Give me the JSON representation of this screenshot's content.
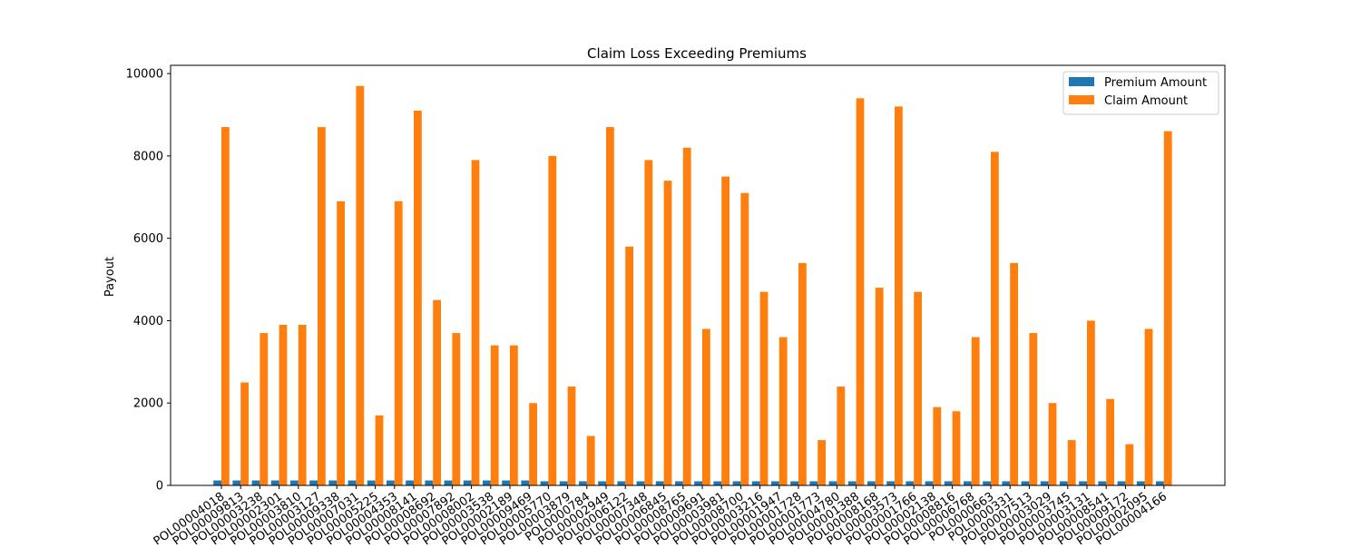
{
  "chart_data": {
    "type": "bar",
    "title": "Claim Loss Exceeding Premiums",
    "xlabel": "",
    "ylabel": "Payout",
    "ylim": [
      0,
      10200
    ],
    "yticks": [
      0,
      2000,
      4000,
      6000,
      8000,
      10000
    ],
    "grid": false,
    "legend_position": "top-right",
    "categories": [
      "POL00004018",
      "POL00009813",
      "POL00003238",
      "POL00002301",
      "POL00003810",
      "POL00003127",
      "POL00009338",
      "POL00007031",
      "POL00005225",
      "POL00004353",
      "POL00008141",
      "POL00008692",
      "POL00007892",
      "POL00008002",
      "POL00003538",
      "POL00002189",
      "POL00009469",
      "POL00005770",
      "POL00003879",
      "POL0000784",
      "POL00002949",
      "POL00006122",
      "POL00007348",
      "POL00006845",
      "POL00008765",
      "POL00009691",
      "POL00003981",
      "POL00008700",
      "POL00003216",
      "POL00001947",
      "POL00001728",
      "POL00001773",
      "POL00004780",
      "POL00001388",
      "POL00008168",
      "POL00003573",
      "POL00001766",
      "POL00002138",
      "POL00008816",
      "POL00006768",
      "POL0000663",
      "POL0000331",
      "POL00007513",
      "POL00003029",
      "POL00003745",
      "POL00003131",
      "POL00008541",
      "POL00009172",
      "POL00002095",
      "POL00004166"
    ],
    "series": [
      {
        "name": "Premium Amount",
        "color": "#1f77b4",
        "values": [
          120,
          120,
          120,
          120,
          120,
          120,
          120,
          120,
          120,
          120,
          120,
          120,
          120,
          120,
          120,
          120,
          120,
          100,
          100,
          100,
          100,
          100,
          100,
          100,
          100,
          100,
          100,
          100,
          100,
          100,
          100,
          100,
          100,
          100,
          100,
          100,
          100,
          100,
          100,
          100,
          100,
          100,
          100,
          100,
          100,
          100,
          100,
          100,
          100,
          100
        ]
      },
      {
        "name": "Claim Amount",
        "color": "#ff7f0e",
        "values": [
          8700,
          2500,
          3700,
          3900,
          3900,
          8700,
          6900,
          9700,
          1700,
          6900,
          9100,
          4500,
          3700,
          7900,
          3400,
          3400,
          2000,
          8000,
          2400,
          1200,
          8700,
          5800,
          7900,
          7400,
          8200,
          3800,
          7500,
          7100,
          4700,
          3600,
          5400,
          1100,
          2400,
          9400,
          4800,
          9200,
          4700,
          1900,
          1800,
          3600,
          8100,
          5400,
          3700,
          2000,
          1100,
          4000,
          2100,
          1000,
          3800,
          8600
        ]
      }
    ]
  }
}
